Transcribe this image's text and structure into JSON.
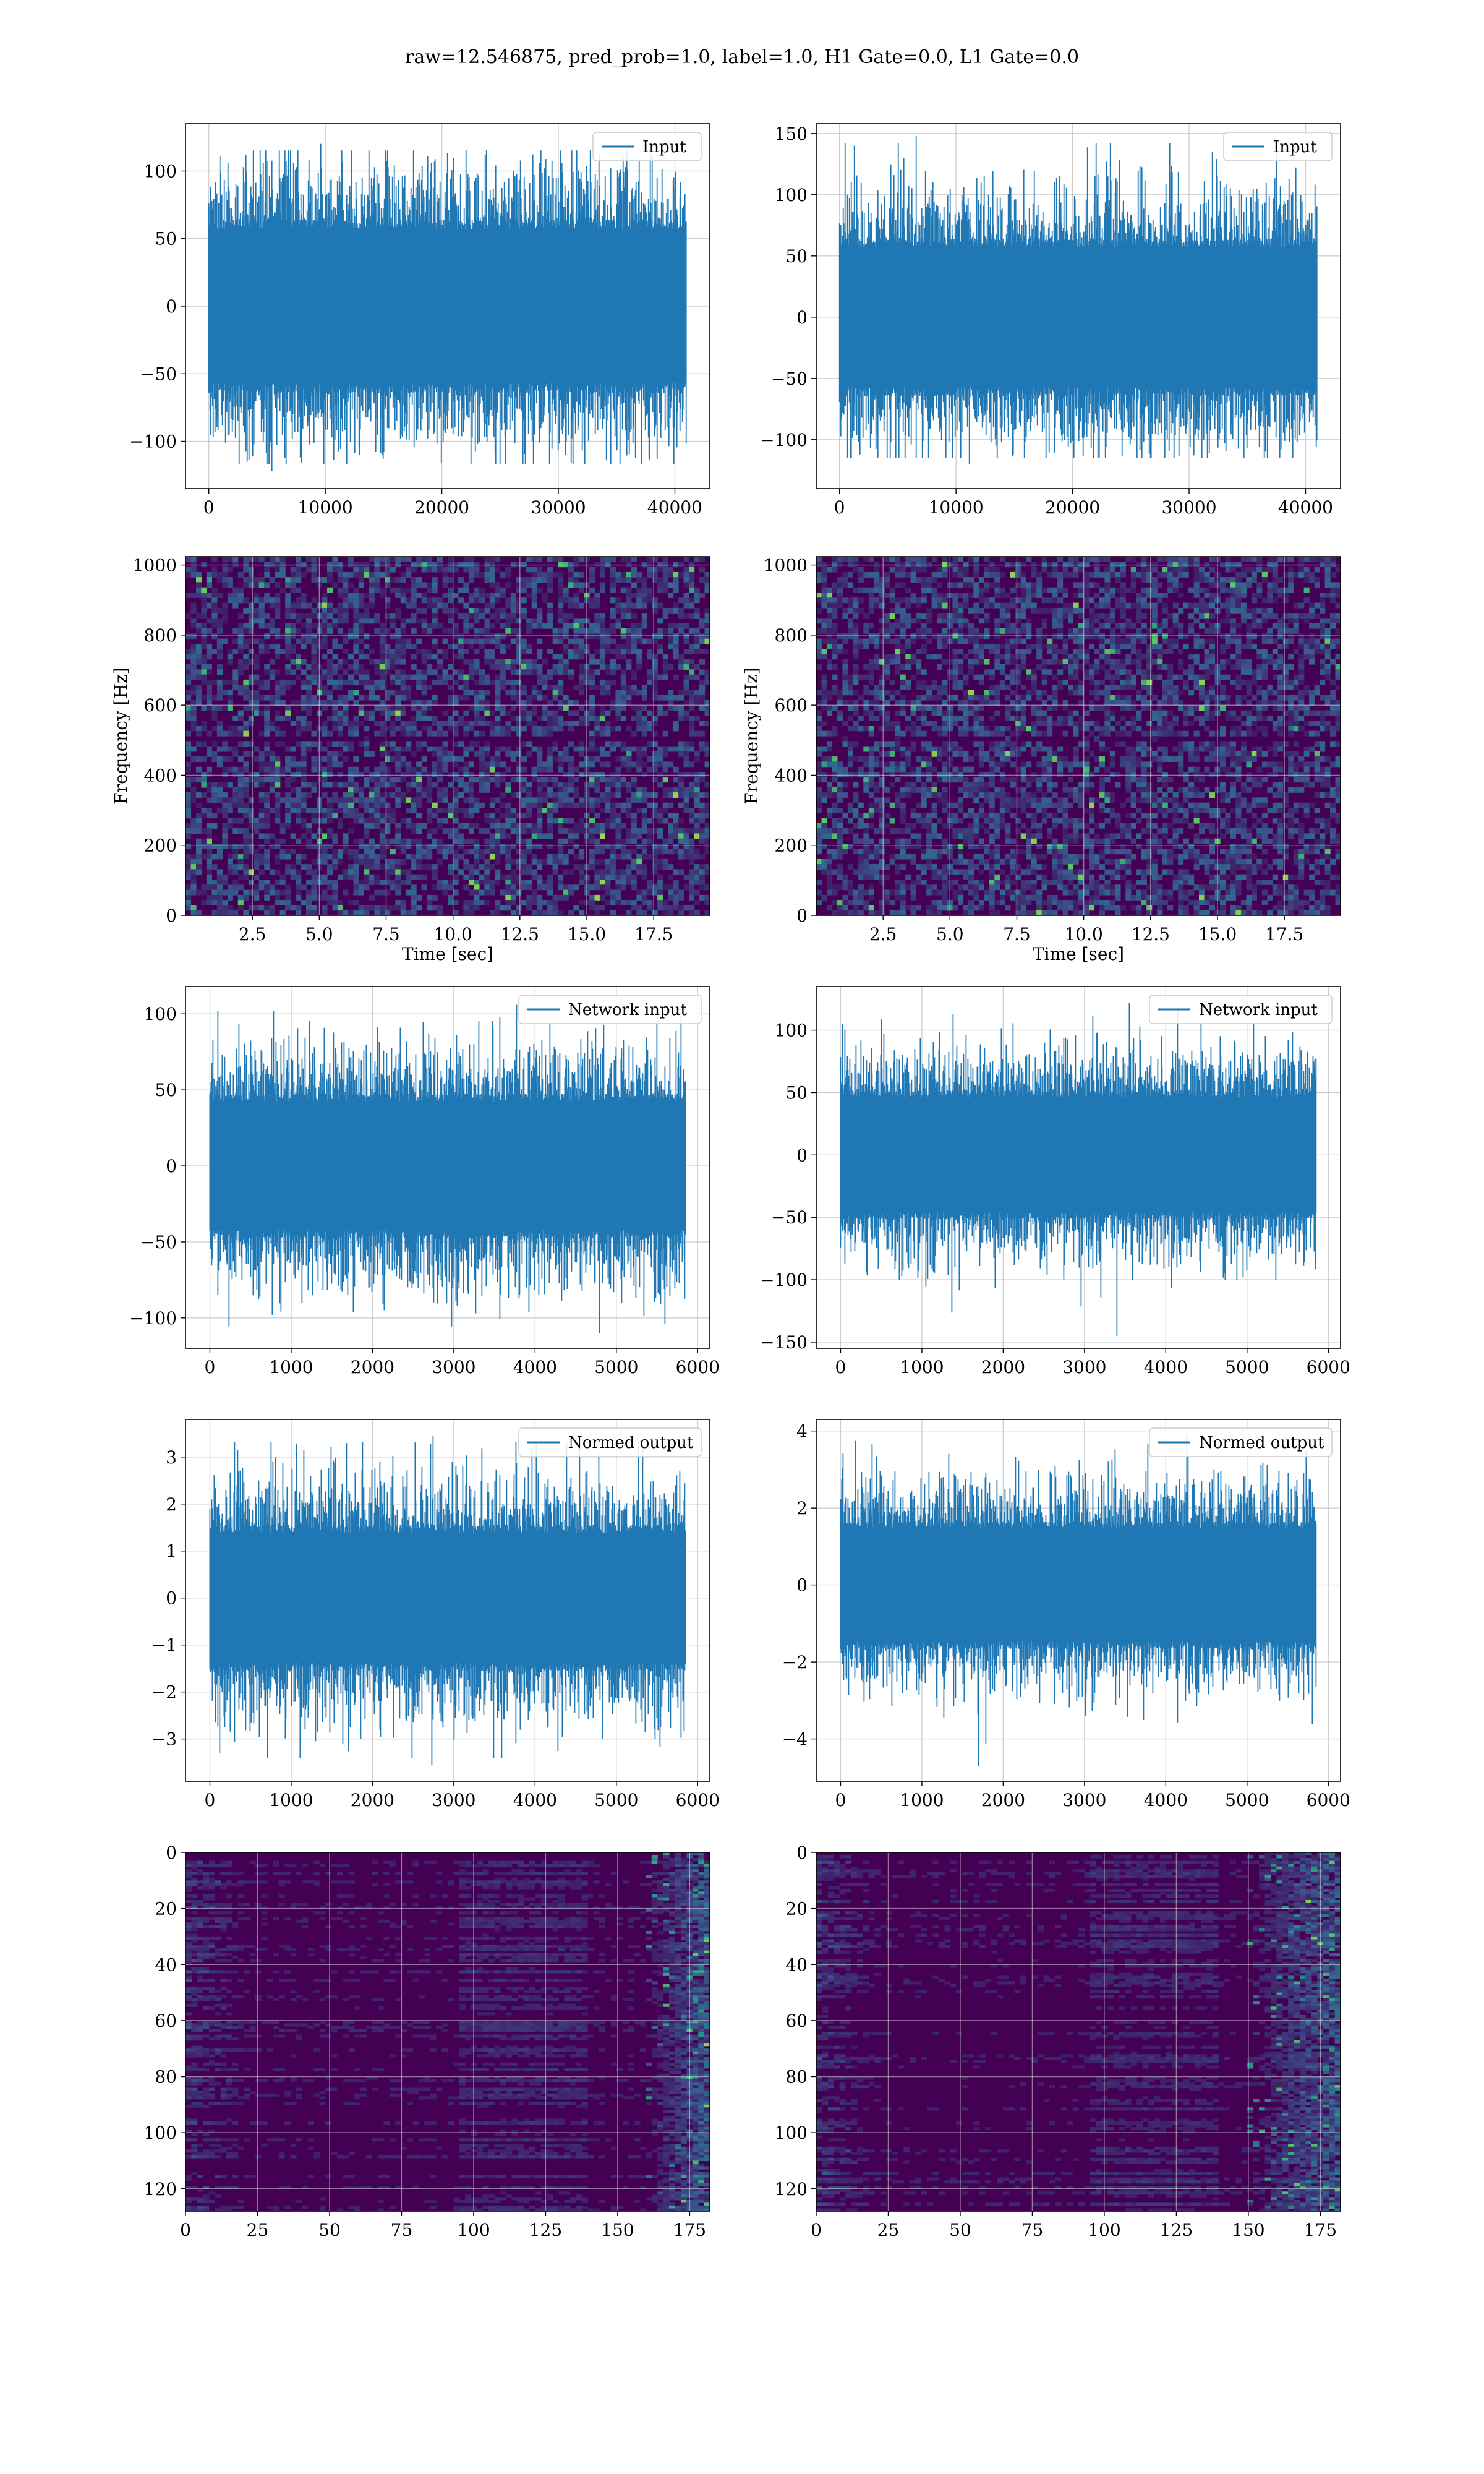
{
  "figure": {
    "title": "raw=12.546875, pred_prob=1.0, label=1.0, H1 Gate=0.0, L1 Gate=0.0"
  },
  "colors": {
    "series": "#1f77b4",
    "grid": "#b0b0b0",
    "spectrogram_base": "#440154",
    "viridis": [
      "#440154",
      "#3b528b",
      "#21918c",
      "#5ec962",
      "#fde725"
    ]
  },
  "chart_data": [
    {
      "id": "input-h1",
      "type": "line",
      "column": 0,
      "row": 0,
      "legend": "Input",
      "legend_position": "upper-right",
      "xlim": [
        -2000,
        43000
      ],
      "ylim": [
        -135,
        135
      ],
      "xticks": [
        0,
        10000,
        20000,
        30000,
        40000
      ],
      "xtick_labels": [
        "0",
        "10000",
        "20000",
        "30000",
        "40000"
      ],
      "yticks": [
        -100,
        -50,
        0,
        50,
        100
      ],
      "ytick_labels": [
        "−100",
        "−50",
        "0",
        "50",
        "100"
      ],
      "signal": {
        "x_start": 0,
        "x_end": 40960,
        "core": 62,
        "peak_max": 120,
        "peak_min": -122
      },
      "xlabel": "",
      "ylabel": "",
      "grid": true
    },
    {
      "id": "input-l1",
      "type": "line",
      "column": 1,
      "row": 0,
      "legend": "Input",
      "legend_position": "upper-right",
      "xlim": [
        -2000,
        43000
      ],
      "ylim": [
        -140,
        158
      ],
      "xticks": [
        0,
        10000,
        20000,
        30000,
        40000
      ],
      "xtick_labels": [
        "0",
        "10000",
        "20000",
        "30000",
        "40000"
      ],
      "yticks": [
        -100,
        -50,
        0,
        50,
        100,
        150
      ],
      "ytick_labels": [
        "−100",
        "−50",
        "0",
        "50",
        "100",
        "150"
      ],
      "signal": {
        "x_start": 0,
        "x_end": 40960,
        "core": 62,
        "peak_max": 148,
        "peak_min": -120
      },
      "xlabel": "",
      "ylabel": "",
      "grid": true
    },
    {
      "id": "spectrogram-h1",
      "type": "heatmap",
      "column": 0,
      "row": 1,
      "xlim": [
        0,
        19.6
      ],
      "ylim": [
        0,
        1024
      ],
      "xticks": [
        2.5,
        5.0,
        7.5,
        10.0,
        12.5,
        15.0,
        17.5
      ],
      "xtick_labels": [
        "2.5",
        "5.0",
        "7.5",
        "10.0",
        "12.5",
        "15.0",
        "17.5"
      ],
      "yticks": [
        0,
        200,
        400,
        600,
        800,
        1000
      ],
      "ytick_labels": [
        "0",
        "200",
        "400",
        "600",
        "800",
        "1000"
      ],
      "xlabel": "Time [sec]",
      "ylabel": "Frequency [Hz]",
      "dark_band_frequency": 500,
      "grid": true
    },
    {
      "id": "spectrogram-l1",
      "type": "heatmap",
      "column": 1,
      "row": 1,
      "xlim": [
        0,
        19.6
      ],
      "ylim": [
        0,
        1024
      ],
      "xticks": [
        2.5,
        5.0,
        7.5,
        10.0,
        12.5,
        15.0,
        17.5
      ],
      "xtick_labels": [
        "2.5",
        "5.0",
        "7.5",
        "10.0",
        "12.5",
        "15.0",
        "17.5"
      ],
      "yticks": [
        0,
        200,
        400,
        600,
        800,
        1000
      ],
      "ytick_labels": [
        "0",
        "200",
        "400",
        "600",
        "800",
        "1000"
      ],
      "xlabel": "Time [sec]",
      "ylabel": "Frequency [Hz]",
      "dark_band_frequency": 500,
      "grid": true
    },
    {
      "id": "network-input-h1",
      "type": "line",
      "column": 0,
      "row": 2,
      "legend": "Network input",
      "legend_position": "upper-right",
      "xlim": [
        -300,
        6150
      ],
      "ylim": [
        -120,
        118
      ],
      "xticks": [
        0,
        1000,
        2000,
        3000,
        4000,
        5000,
        6000
      ],
      "xtick_labels": [
        "0",
        "1000",
        "2000",
        "3000",
        "4000",
        "5000",
        "6000"
      ],
      "yticks": [
        -100,
        -50,
        0,
        50,
        100
      ],
      "ytick_labels": [
        "−100",
        "−50",
        "0",
        "50",
        "100"
      ],
      "signal": {
        "x_start": 0,
        "x_end": 5850,
        "core": 46,
        "peak_max": 106,
        "peak_min": -110
      },
      "xlabel": "",
      "ylabel": "",
      "grid": true
    },
    {
      "id": "network-input-l1",
      "type": "line",
      "column": 1,
      "row": 2,
      "legend": "Network input",
      "legend_position": "upper-right",
      "xlim": [
        -300,
        6150
      ],
      "ylim": [
        -155,
        135
      ],
      "xticks": [
        0,
        1000,
        2000,
        3000,
        4000,
        5000,
        6000
      ],
      "xtick_labels": [
        "0",
        "1000",
        "2000",
        "3000",
        "4000",
        "5000",
        "6000"
      ],
      "yticks": [
        -150,
        -100,
        -50,
        0,
        50,
        100
      ],
      "ytick_labels": [
        "−150",
        "−100",
        "−50",
        "0",
        "50",
        "100"
      ],
      "signal": {
        "x_start": 0,
        "x_end": 5850,
        "core": 50,
        "peak_max": 122,
        "peak_min": -145
      },
      "xlabel": "",
      "ylabel": "",
      "grid": true
    },
    {
      "id": "normed-output-h1",
      "type": "line",
      "column": 0,
      "row": 3,
      "legend": "Normed output",
      "legend_position": "upper-right",
      "xlim": [
        -300,
        6150
      ],
      "ylim": [
        -3.9,
        3.8
      ],
      "xticks": [
        0,
        1000,
        2000,
        3000,
        4000,
        5000,
        6000
      ],
      "xtick_labels": [
        "0",
        "1000",
        "2000",
        "3000",
        "4000",
        "5000",
        "6000"
      ],
      "yticks": [
        -3,
        -2,
        -1,
        0,
        1,
        2,
        3
      ],
      "ytick_labels": [
        "−3",
        "−2",
        "−1",
        "0",
        "1",
        "2",
        "3"
      ],
      "signal": {
        "x_start": 0,
        "x_end": 5850,
        "core": 1.5,
        "peak_max": 3.45,
        "peak_min": -3.55
      },
      "xlabel": "",
      "ylabel": "",
      "grid": true
    },
    {
      "id": "normed-output-l1",
      "type": "line",
      "column": 1,
      "row": 3,
      "legend": "Normed output",
      "legend_position": "upper-right",
      "xlim": [
        -300,
        6150
      ],
      "ylim": [
        -5.1,
        4.3
      ],
      "xticks": [
        0,
        1000,
        2000,
        3000,
        4000,
        5000,
        6000
      ],
      "xtick_labels": [
        "0",
        "1000",
        "2000",
        "3000",
        "4000",
        "5000",
        "6000"
      ],
      "yticks": [
        -4,
        -2,
        0,
        2,
        4
      ],
      "ytick_labels": [
        "−4",
        "−2",
        "0",
        "2",
        "4"
      ],
      "signal": {
        "x_start": 0,
        "x_end": 5850,
        "core": 1.6,
        "peak_max": 3.9,
        "peak_min": -4.7
      },
      "xlabel": "",
      "ylabel": "",
      "grid": true
    },
    {
      "id": "feature-map-h1",
      "type": "heatmap",
      "column": 0,
      "row": 4,
      "xlim": [
        0,
        182
      ],
      "ylim": [
        128,
        0
      ],
      "y_inverted": true,
      "xticks": [
        0,
        25,
        50,
        75,
        100,
        125,
        150,
        175
      ],
      "xtick_labels": [
        "0",
        "25",
        "50",
        "75",
        "100",
        "125",
        "150",
        "175"
      ],
      "yticks": [
        0,
        20,
        40,
        60,
        80,
        100,
        120
      ],
      "ytick_labels": [
        "0",
        "20",
        "40",
        "60",
        "80",
        "100",
        "120"
      ],
      "hot_columns_from": 160,
      "xlabel": "",
      "ylabel": "",
      "grid": true
    },
    {
      "id": "feature-map-l1",
      "type": "heatmap",
      "column": 1,
      "row": 4,
      "xlim": [
        0,
        182
      ],
      "ylim": [
        128,
        0
      ],
      "y_inverted": true,
      "xticks": [
        0,
        25,
        50,
        75,
        100,
        125,
        150,
        175
      ],
      "xtick_labels": [
        "0",
        "25",
        "50",
        "75",
        "100",
        "125",
        "150",
        "175"
      ],
      "yticks": [
        0,
        20,
        40,
        60,
        80,
        100,
        120
      ],
      "ytick_labels": [
        "0",
        "20",
        "40",
        "60",
        "80",
        "100",
        "120"
      ],
      "hot_columns_from": 150,
      "xlabel": "",
      "ylabel": "",
      "grid": true
    }
  ]
}
